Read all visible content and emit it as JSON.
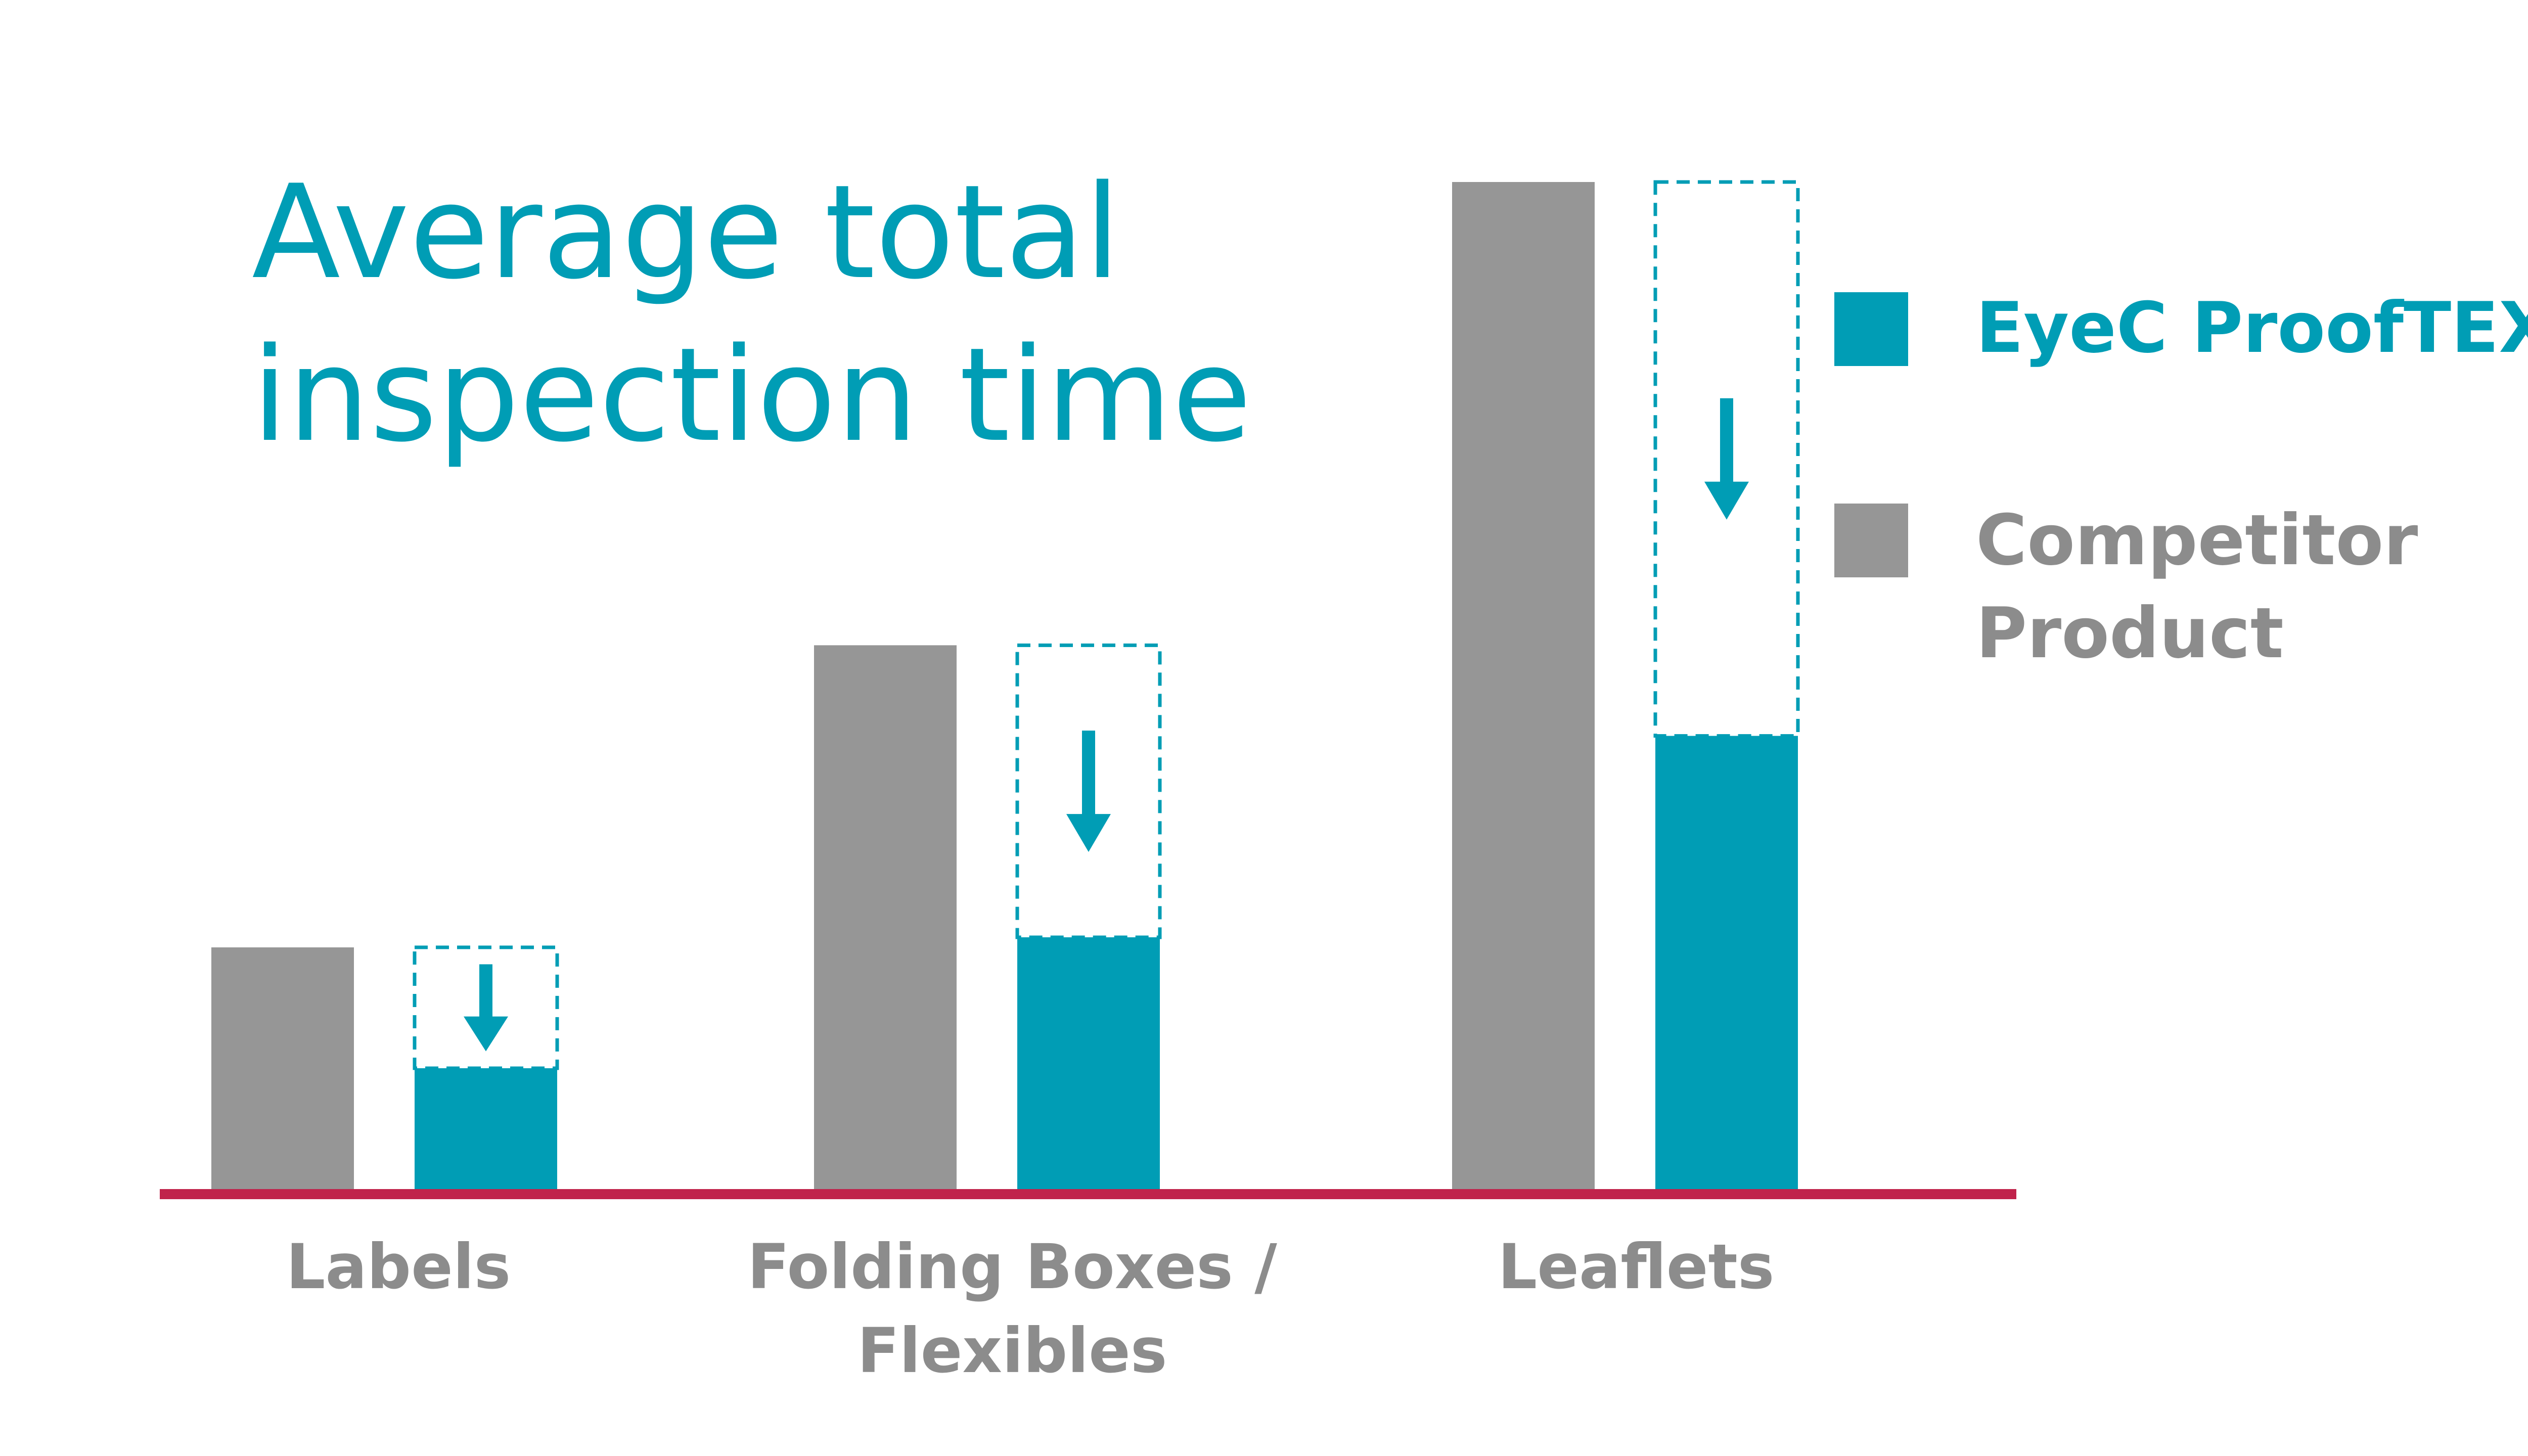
{
  "colors": {
    "eyec": "#009db5",
    "competitor": "#969696",
    "baseline": "#c0234b",
    "label": "#8c8c8c",
    "title": "#009db5"
  },
  "chart_data": {
    "type": "bar",
    "title": [
      "Average total",
      "inspection time"
    ],
    "xlabel": "",
    "ylabel": "",
    "grid": false,
    "legend_position": "right",
    "categories": [
      [
        "Labels"
      ],
      [
        "Folding Boxes /",
        "Flexibles"
      ],
      [
        "Leaflets"
      ]
    ],
    "series": [
      {
        "name": "Competitor Product",
        "legend_lines": [
          "Competitor",
          "Product"
        ],
        "color": "#969696",
        "values": [
          24,
          54,
          100
        ]
      },
      {
        "name": "EyeC ProofTEXT",
        "legend_lines": [
          "EyeC ProofTEXT"
        ],
        "color": "#009db5",
        "values": [
          12,
          25,
          45
        ]
      }
    ],
    "reference_outline": "competitor value shown as dashed outline above EyeC bar, with downward arrow",
    "ylim": [
      0,
      100
    ]
  }
}
